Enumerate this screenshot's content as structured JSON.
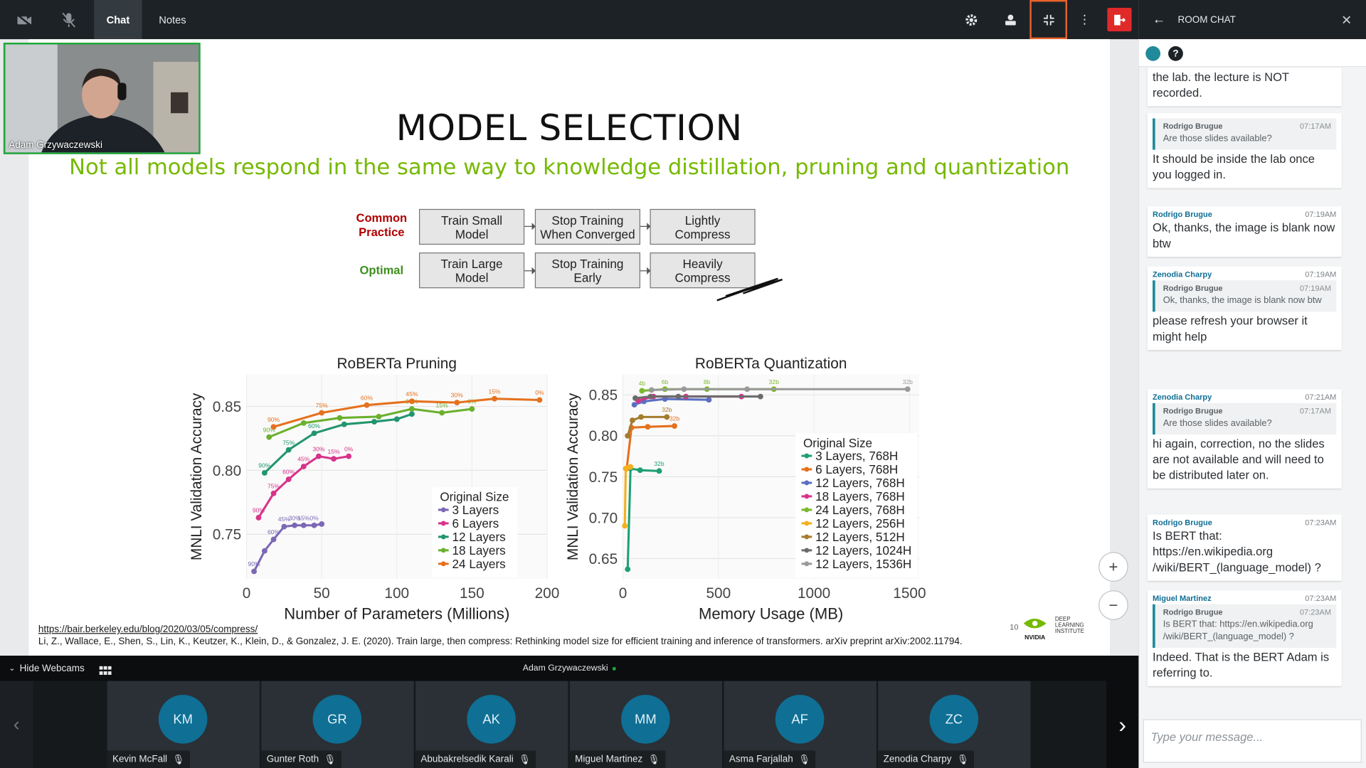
{
  "toolbar": {
    "tabs": [
      "Chat",
      "Notes"
    ],
    "right_icons": [
      "settings-icon",
      "presenter-icon",
      "minimize-icon",
      "more-icon",
      "leave-icon"
    ]
  },
  "webcam": {
    "name": "Adam Grzywaczewski"
  },
  "slide": {
    "title": "MODEL SELECTION",
    "subtitle": "Not all models respond in the same way to knowledge distillation, pruning and quantization",
    "rows": [
      {
        "label": "Common\nPractice",
        "steps": [
          "Train Small\nModel",
          "Stop Training\nWhen Converged",
          "Lightly\nCompress"
        ]
      },
      {
        "label": "Optimal",
        "steps": [
          "Train Large\nModel",
          "Stop Training\nEarly",
          "Heavily\nCompress"
        ]
      }
    ],
    "link": "https://bair.berkeley.edu/blog/2020/03/05/compress/",
    "citation": "Li, Z., Wallace, E., Shen, S., Lin, K., Keutzer, K., Klein, D., & Gonzalez, J. E. (2020). Train large, then compress: Rethinking model size for efficient training and inference of transformers. arXiv preprint arXiv:2002.11794.",
    "page_number": "10",
    "nvidia": "NVIDIA",
    "dli": [
      "DEEP",
      "LEARNING",
      "INSTITUTE"
    ]
  },
  "chart_data": [
    {
      "type": "line",
      "title": "RoBERTa Pruning",
      "xlabel": "Number of Parameters (Millions)",
      "ylabel": "MNLI Validation Accuracy",
      "xlim": [
        0,
        200
      ],
      "ylim": [
        0.715,
        0.875
      ],
      "xticks": [
        "0",
        "50",
        "100",
        "150",
        "200"
      ],
      "yticks": [
        "0.75",
        "0.80",
        "0.85"
      ],
      "legend_title": "Original Size",
      "legend_position": "bottom-right",
      "series": [
        {
          "name": "3 Layers",
          "color": "#7b68b5",
          "x": [
            5,
            12,
            18,
            25,
            32,
            38,
            45,
            50
          ],
          "y": [
            0.721,
            0.737,
            0.746,
            0.756,
            0.757,
            0.757,
            0.757,
            0.758
          ],
          "labels": [
            "90%",
            "",
            "60%",
            "45%",
            "30%",
            "15%",
            "0%",
            ""
          ]
        },
        {
          "name": "6 Layers",
          "color": "#d6338a",
          "x": [
            8,
            18,
            28,
            38,
            48,
            58,
            68
          ],
          "y": [
            0.763,
            0.782,
            0.793,
            0.803,
            0.811,
            0.809,
            0.811
          ],
          "labels": [
            "90%",
            "75%",
            "60%",
            "45%",
            "30%",
            "15%",
            "0%"
          ]
        },
        {
          "name": "12 Layers",
          "color": "#22956e",
          "x": [
            12,
            28,
            45,
            65,
            85,
            100,
            110
          ],
          "y": [
            0.798,
            0.816,
            0.829,
            0.836,
            0.838,
            0.84,
            0.844
          ],
          "labels": [
            "90%",
            "75%",
            "60%",
            "",
            "",
            "",
            ""
          ]
        },
        {
          "name": "18 Layers",
          "color": "#6ab02d",
          "x": [
            15,
            38,
            62,
            88,
            110,
            130,
            150
          ],
          "y": [
            0.826,
            0.837,
            0.841,
            0.842,
            0.848,
            0.845,
            0.848
          ],
          "labels": [
            "90%",
            "",
            "",
            "",
            "30%",
            "15%",
            "0%"
          ]
        },
        {
          "name": "24 Layers",
          "color": "#e5711e",
          "x": [
            18,
            50,
            80,
            110,
            140,
            165,
            195
          ],
          "y": [
            0.834,
            0.845,
            0.851,
            0.854,
            0.853,
            0.856,
            0.855
          ],
          "labels": [
            "90%",
            "75%",
            "60%",
            "45%",
            "30%",
            "15%",
            "0%"
          ]
        }
      ]
    },
    {
      "type": "line",
      "title": "RoBERTa Quantization",
      "xlabel": "Memory Usage (MB)",
      "ylabel": "MNLI Validation Accuracy",
      "xlim": [
        0,
        1550
      ],
      "ylim": [
        0.625,
        0.875
      ],
      "xticks": [
        "0",
        "500",
        "1000",
        "1500"
      ],
      "yticks": [
        "0.65",
        "0.70",
        "0.75",
        "0.80",
        "0.85"
      ],
      "legend_title": "Original Size",
      "legend_position": "bottom-right",
      "series": [
        {
          "name": "3 Layers, 768H",
          "color": "#1f9f74",
          "x": [
            25,
            40,
            90,
            190
          ],
          "y": [
            0.637,
            0.76,
            0.758,
            0.757
          ],
          "labels": [
            "",
            "",
            "",
            "32b"
          ]
        },
        {
          "name": "6 Layers, 768H",
          "color": "#e5711e",
          "x": [
            20,
            45,
            130,
            270
          ],
          "y": [
            0.76,
            0.81,
            0.811,
            0.812
          ],
          "labels": [
            "",
            "",
            "",
            "32b"
          ]
        },
        {
          "name": "12 Layers, 768H",
          "color": "#5b6fc1",
          "x": [
            60,
            110,
            220,
            450
          ],
          "y": [
            0.838,
            0.842,
            0.845,
            0.844
          ],
          "labels": [
            "",
            "",
            "",
            ""
          ]
        },
        {
          "name": "18 Layers, 768H",
          "color": "#d6338a",
          "x": [
            80,
            160,
            330,
            620
          ],
          "y": [
            0.843,
            0.848,
            0.848,
            0.848
          ],
          "labels": [
            "",
            "",
            "",
            ""
          ]
        },
        {
          "name": "24 Layers, 768H",
          "color": "#7cb82f",
          "x": [
            100,
            220,
            440,
            790
          ],
          "y": [
            0.855,
            0.857,
            0.857,
            0.857
          ],
          "labels": [
            "4b",
            "6b",
            "8b",
            "32b"
          ]
        },
        {
          "name": "12 Layers, 256H",
          "color": "#f2b01e",
          "x": [
            10,
            15,
            25,
            40
          ],
          "y": [
            0.69,
            0.76,
            0.761,
            0.762
          ],
          "labels": [
            "",
            "",
            "",
            ""
          ]
        },
        {
          "name": "12 Layers, 512H",
          "color": "#a47c2e",
          "x": [
            25,
            50,
            95,
            230
          ],
          "y": [
            0.8,
            0.819,
            0.823,
            0.823
          ],
          "labels": [
            "",
            "",
            "",
            "32b"
          ]
        },
        {
          "name": "12 Layers, 1024H",
          "color": "#6b6b6b",
          "x": [
            65,
            145,
            290,
            720
          ],
          "y": [
            0.846,
            0.848,
            0.848,
            0.848
          ],
          "labels": [
            "",
            "",
            "",
            ""
          ]
        },
        {
          "name": "12 Layers, 1536H",
          "color": "#9a9a9a",
          "x": [
            150,
            320,
            650,
            1490
          ],
          "y": [
            0.856,
            0.857,
            0.857,
            0.857
          ],
          "labels": [
            "",
            "",
            "",
            "32b"
          ]
        }
      ]
    }
  ],
  "zoom": {
    "in": "+",
    "out": "−"
  },
  "bottom": {
    "hide_webcams": "Hide Webcams",
    "presenter": "Adam Grzywaczewski"
  },
  "participants": [
    {
      "initials": "KM",
      "name": "Kevin McFall"
    },
    {
      "initials": "GR",
      "name": "Gunter Roth"
    },
    {
      "initials": "AK",
      "name": "Abubakrelsedik Karali"
    },
    {
      "initials": "MM",
      "name": "Miguel Martinez"
    },
    {
      "initials": "AF",
      "name": "Asma Farjallah"
    },
    {
      "initials": "ZC",
      "name": "Zenodia Charpy"
    }
  ],
  "chat": {
    "title": "ROOM CHAT",
    "placeholder": "Type your message...",
    "messages": [
      {
        "text": "the lab. the lecture is NOT recorded."
      },
      {
        "quote_author": "Rodrigo Brugue",
        "quote_time": "07:17AM",
        "quote_text": "Are those slides available?",
        "text": "It should be inside the lab once you logged in."
      },
      {
        "author": "Rodrigo Brugue",
        "time": "07:19AM",
        "text": "Ok, thanks, the image is blank now btw"
      },
      {
        "author": "Zenodia Charpy",
        "time": "07:19AM",
        "quote_author": "Rodrigo Brugue",
        "quote_time": "07:19AM",
        "quote_text": "Ok, thanks, the image is blank now btw",
        "text": "please refresh your browser it might help"
      },
      {
        "author": "Zenodia Charpy",
        "time": "07:21AM",
        "quote_author": "Rodrigo Brugue",
        "quote_time": "07:17AM",
        "quote_text": "Are those slides available?",
        "text": "hi again, correction, no the slides are not available and will need to be distributed later on."
      },
      {
        "author": "Rodrigo Brugue",
        "time": "07:23AM",
        "text": "Is BERT that: https://en.wikipedia.org /wiki/BERT_(language_model) ?"
      },
      {
        "author": "Miguel Martinez",
        "time": "07:23AM",
        "quote_author": "Rodrigo Brugue",
        "quote_time": "07:23AM",
        "quote_text": "Is BERT that: https://en.wikipedia.org /wiki/BERT_(language_model) ?",
        "text": "Indeed. That is the BERT Adam is referring to."
      }
    ]
  }
}
